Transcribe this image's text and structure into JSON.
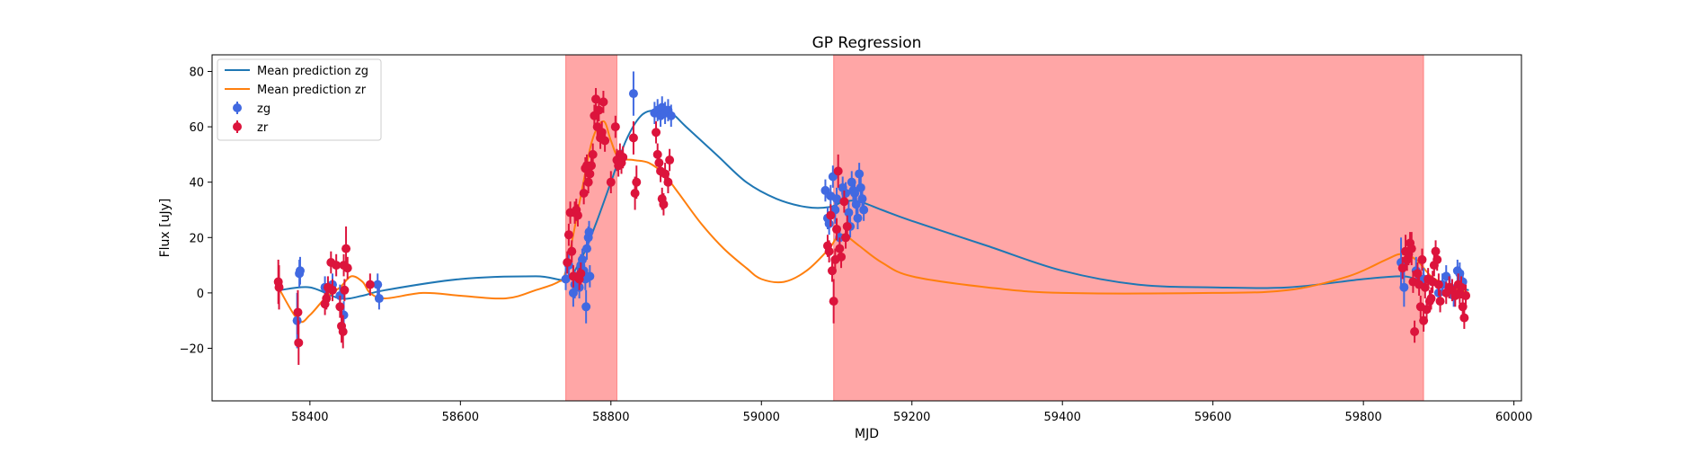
{
  "chart_data": {
    "type": "scatter",
    "title": "GP Regression",
    "xlabel": "MJD",
    "ylabel": "Flux [uJy]",
    "xlim": [
      58270,
      60010
    ],
    "ylim": [
      -39,
      86
    ],
    "x_ticks": [
      58400,
      58600,
      58800,
      59000,
      59200,
      59400,
      59600,
      59800,
      60000
    ],
    "x_tick_labels": [
      "58400",
      "58600",
      "58800",
      "59000",
      "59200",
      "59400",
      "59600",
      "59800",
      "60000"
    ],
    "y_ticks": [
      -20,
      0,
      20,
      40,
      60,
      80
    ],
    "y_tick_labels": [
      "−20",
      "0",
      "20",
      "40",
      "60",
      "80"
    ],
    "grid": false,
    "legend_position": "top-left",
    "shaded_regions": [
      {
        "x": [
          58740,
          58808
        ],
        "color": "#ff0000"
      },
      {
        "x": [
          59096,
          59880
        ],
        "color": "#ff0000"
      }
    ],
    "lines": [
      {
        "name": "Mean prediction zg",
        "color": "#1f77b4",
        "points": [
          [
            58360,
            1
          ],
          [
            58400,
            2
          ],
          [
            58440,
            -2
          ],
          [
            58470,
            -1
          ],
          [
            58500,
            1
          ],
          [
            58600,
            5
          ],
          [
            58700,
            6
          ],
          [
            58740,
            5
          ],
          [
            58760,
            12
          ],
          [
            58780,
            25
          ],
          [
            58800,
            40
          ],
          [
            58820,
            55
          ],
          [
            58840,
            64
          ],
          [
            58860,
            66
          ],
          [
            58880,
            65
          ],
          [
            58900,
            60
          ],
          [
            58940,
            50
          ],
          [
            58980,
            40
          ],
          [
            59020,
            34
          ],
          [
            59060,
            31
          ],
          [
            59090,
            31
          ],
          [
            59110,
            33
          ],
          [
            59130,
            33
          ],
          [
            59160,
            30
          ],
          [
            59200,
            26
          ],
          [
            59300,
            17
          ],
          [
            59400,
            8
          ],
          [
            59500,
            3
          ],
          [
            59600,
            2
          ],
          [
            59700,
            2
          ],
          [
            59800,
            5
          ],
          [
            59850,
            6
          ],
          [
            59870,
            5
          ],
          [
            59900,
            3
          ],
          [
            59940,
            1
          ]
        ]
      },
      {
        "name": "Mean prediction zr",
        "color": "#ff7f0e",
        "points": [
          [
            58360,
            1
          ],
          [
            58385,
            -10
          ],
          [
            58400,
            -8
          ],
          [
            58420,
            -2
          ],
          [
            58440,
            2
          ],
          [
            58455,
            6
          ],
          [
            58470,
            4
          ],
          [
            58480,
            0
          ],
          [
            58500,
            -2
          ],
          [
            58550,
            0
          ],
          [
            58600,
            -1
          ],
          [
            58660,
            -2
          ],
          [
            58700,
            1
          ],
          [
            58730,
            4
          ],
          [
            58740,
            8
          ],
          [
            58760,
            35
          ],
          [
            58775,
            55
          ],
          [
            58790,
            62
          ],
          [
            58800,
            55
          ],
          [
            58810,
            49
          ],
          [
            58830,
            48
          ],
          [
            58850,
            47
          ],
          [
            58870,
            43
          ],
          [
            58890,
            36
          ],
          [
            58920,
            25
          ],
          [
            58950,
            16
          ],
          [
            58980,
            9
          ],
          [
            59000,
            5
          ],
          [
            59030,
            4
          ],
          [
            59060,
            8
          ],
          [
            59090,
            16
          ],
          [
            59100,
            20
          ],
          [
            59110,
            21
          ],
          [
            59130,
            17
          ],
          [
            59160,
            11
          ],
          [
            59200,
            6
          ],
          [
            59300,
            2
          ],
          [
            59400,
            0
          ],
          [
            59600,
            0
          ],
          [
            59700,
            1
          ],
          [
            59780,
            6
          ],
          [
            59830,
            12
          ],
          [
            59850,
            14
          ],
          [
            59870,
            12
          ],
          [
            59890,
            6
          ],
          [
            59910,
            3
          ],
          [
            59940,
            0
          ]
        ]
      }
    ],
    "series": [
      {
        "name": "zg",
        "color": "#4169e1",
        "points": [
          [
            58383,
            -10,
            10
          ],
          [
            58386,
            7,
            5
          ],
          [
            58387,
            8,
            5
          ],
          [
            58420,
            2,
            4
          ],
          [
            58430,
            3,
            4
          ],
          [
            58440,
            -1,
            4
          ],
          [
            58445,
            -8,
            5
          ],
          [
            58490,
            3,
            4
          ],
          [
            58492,
            -2,
            4
          ],
          [
            58740,
            5,
            4
          ],
          [
            58744,
            10,
            4
          ],
          [
            58750,
            0,
            5
          ],
          [
            58752,
            3,
            5
          ],
          [
            58756,
            6,
            4
          ],
          [
            58758,
            2,
            4
          ],
          [
            58760,
            10,
            4
          ],
          [
            58762,
            12,
            4
          ],
          [
            58764,
            8,
            4
          ],
          [
            58766,
            5,
            4
          ],
          [
            58767,
            -5,
            6
          ],
          [
            58768,
            16,
            4
          ],
          [
            58770,
            20,
            4
          ],
          [
            58771,
            22,
            4
          ],
          [
            58772,
            6,
            4
          ],
          [
            58830,
            72,
            8
          ],
          [
            58858,
            65,
            4
          ],
          [
            58862,
            66,
            4
          ],
          [
            58866,
            64,
            4
          ],
          [
            58868,
            67,
            4
          ],
          [
            58872,
            65,
            4
          ],
          [
            58876,
            66,
            4
          ],
          [
            58880,
            64,
            4
          ],
          [
            59085,
            37,
            4
          ],
          [
            59088,
            27,
            4
          ],
          [
            59090,
            25,
            4
          ],
          [
            59092,
            35,
            4
          ],
          [
            59095,
            42,
            4
          ],
          [
            59098,
            30,
            5
          ],
          [
            59100,
            34,
            4
          ],
          [
            59104,
            20,
            4
          ],
          [
            59108,
            38,
            4
          ],
          [
            59112,
            36,
            4
          ],
          [
            59116,
            29,
            4
          ],
          [
            59118,
            24,
            4
          ],
          [
            59120,
            40,
            4
          ],
          [
            59122,
            37,
            4
          ],
          [
            59124,
            36,
            4
          ],
          [
            59126,
            32,
            4
          ],
          [
            59128,
            27,
            4
          ],
          [
            59130,
            43,
            4
          ],
          [
            59132,
            38,
            4
          ],
          [
            59134,
            34,
            4
          ],
          [
            59136,
            30,
            4
          ],
          [
            59850,
            11,
            9
          ],
          [
            59854,
            2,
            7
          ],
          [
            59870,
            8,
            5
          ],
          [
            59880,
            5,
            4
          ],
          [
            59900,
            0,
            4
          ],
          [
            59905,
            3,
            4
          ],
          [
            59910,
            6,
            4
          ],
          [
            59915,
            2,
            4
          ],
          [
            59920,
            -1,
            4
          ],
          [
            59925,
            8,
            4
          ],
          [
            59928,
            7,
            4
          ],
          [
            59932,
            4,
            4
          ]
        ]
      },
      {
        "name": "zr",
        "color": "#dc143c",
        "points": [
          [
            58358,
            4,
            8
          ],
          [
            58359,
            2,
            8
          ],
          [
            58384,
            -7,
            8
          ],
          [
            58385,
            -18,
            8
          ],
          [
            58420,
            -4,
            4
          ],
          [
            58422,
            -2,
            4
          ],
          [
            58424,
            2,
            4
          ],
          [
            58428,
            11,
            4
          ],
          [
            58430,
            1,
            4
          ],
          [
            58435,
            10,
            4
          ],
          [
            58440,
            -5,
            4
          ],
          [
            58442,
            -12,
            6
          ],
          [
            58444,
            -14,
            6
          ],
          [
            58445,
            10,
            4
          ],
          [
            58446,
            1,
            4
          ],
          [
            58448,
            16,
            8
          ],
          [
            58450,
            9,
            4
          ],
          [
            58480,
            3,
            4
          ],
          [
            58742,
            11,
            4
          ],
          [
            58744,
            21,
            4
          ],
          [
            58746,
            29,
            4
          ],
          [
            58748,
            15,
            4
          ],
          [
            58750,
            6,
            4
          ],
          [
            58752,
            29,
            4
          ],
          [
            58754,
            30,
            4
          ],
          [
            58756,
            28,
            4
          ],
          [
            58758,
            5,
            4
          ],
          [
            58760,
            7,
            4
          ],
          [
            58764,
            36,
            4
          ],
          [
            58766,
            45,
            4
          ],
          [
            58768,
            46,
            4
          ],
          [
            58770,
            40,
            4
          ],
          [
            58772,
            43,
            4
          ],
          [
            58774,
            46,
            4
          ],
          [
            58776,
            50,
            4
          ],
          [
            58778,
            64,
            4
          ],
          [
            58780,
            70,
            4
          ],
          [
            58782,
            60,
            4
          ],
          [
            58784,
            66,
            4
          ],
          [
            58786,
            56,
            4
          ],
          [
            58788,
            58,
            4
          ],
          [
            58790,
            69,
            4
          ],
          [
            58792,
            55,
            4
          ],
          [
            58800,
            40,
            4
          ],
          [
            58806,
            60,
            4
          ],
          [
            58808,
            48,
            4
          ],
          [
            58810,
            46,
            4
          ],
          [
            58812,
            50,
            4
          ],
          [
            58814,
            47,
            4
          ],
          [
            58816,
            49,
            4
          ],
          [
            58830,
            56,
            6
          ],
          [
            58832,
            36,
            6
          ],
          [
            58834,
            40,
            6
          ],
          [
            58860,
            58,
            4
          ],
          [
            58862,
            50,
            4
          ],
          [
            58864,
            47,
            4
          ],
          [
            58866,
            44,
            4
          ],
          [
            58868,
            34,
            4
          ],
          [
            58870,
            32,
            4
          ],
          [
            58872,
            43,
            4
          ],
          [
            58876,
            40,
            4
          ],
          [
            58878,
            48,
            4
          ],
          [
            59088,
            17,
            4
          ],
          [
            59090,
            15,
            4
          ],
          [
            59092,
            28,
            4
          ],
          [
            59094,
            8,
            4
          ],
          [
            59096,
            -3,
            8
          ],
          [
            59098,
            12,
            4
          ],
          [
            59100,
            23,
            4
          ],
          [
            59102,
            44,
            6
          ],
          [
            59104,
            16,
            4
          ],
          [
            59106,
            13,
            4
          ],
          [
            59110,
            33,
            4
          ],
          [
            59112,
            20,
            4
          ],
          [
            59114,
            24,
            4
          ],
          [
            59852,
            9,
            4
          ],
          [
            59856,
            15,
            6
          ],
          [
            59858,
            12,
            4
          ],
          [
            59860,
            14,
            4
          ],
          [
            59862,
            18,
            4
          ],
          [
            59864,
            16,
            6
          ],
          [
            59866,
            4,
            4
          ],
          [
            59868,
            -14,
            4
          ],
          [
            59872,
            7,
            4
          ],
          [
            59874,
            3,
            4
          ],
          [
            59876,
            -5,
            4
          ],
          [
            59878,
            12,
            4
          ],
          [
            59880,
            -10,
            4
          ],
          [
            59882,
            2,
            4
          ],
          [
            59884,
            -6,
            4
          ],
          [
            59886,
            5,
            4
          ],
          [
            59888,
            -3,
            4
          ],
          [
            59890,
            -2,
            4
          ],
          [
            59892,
            4,
            4
          ],
          [
            59894,
            10,
            4
          ],
          [
            59896,
            15,
            4
          ],
          [
            59898,
            12,
            4
          ],
          [
            59900,
            3,
            4
          ],
          [
            59902,
            -3,
            4
          ],
          [
            59910,
            0,
            4
          ],
          [
            59914,
            2,
            4
          ],
          [
            59918,
            1,
            4
          ],
          [
            59922,
            -1,
            4
          ],
          [
            59926,
            3,
            4
          ],
          [
            59928,
            0,
            4
          ],
          [
            59930,
            2,
            4
          ],
          [
            59932,
            -5,
            4
          ],
          [
            59934,
            -9,
            4
          ],
          [
            59936,
            -1,
            4
          ]
        ]
      }
    ]
  }
}
